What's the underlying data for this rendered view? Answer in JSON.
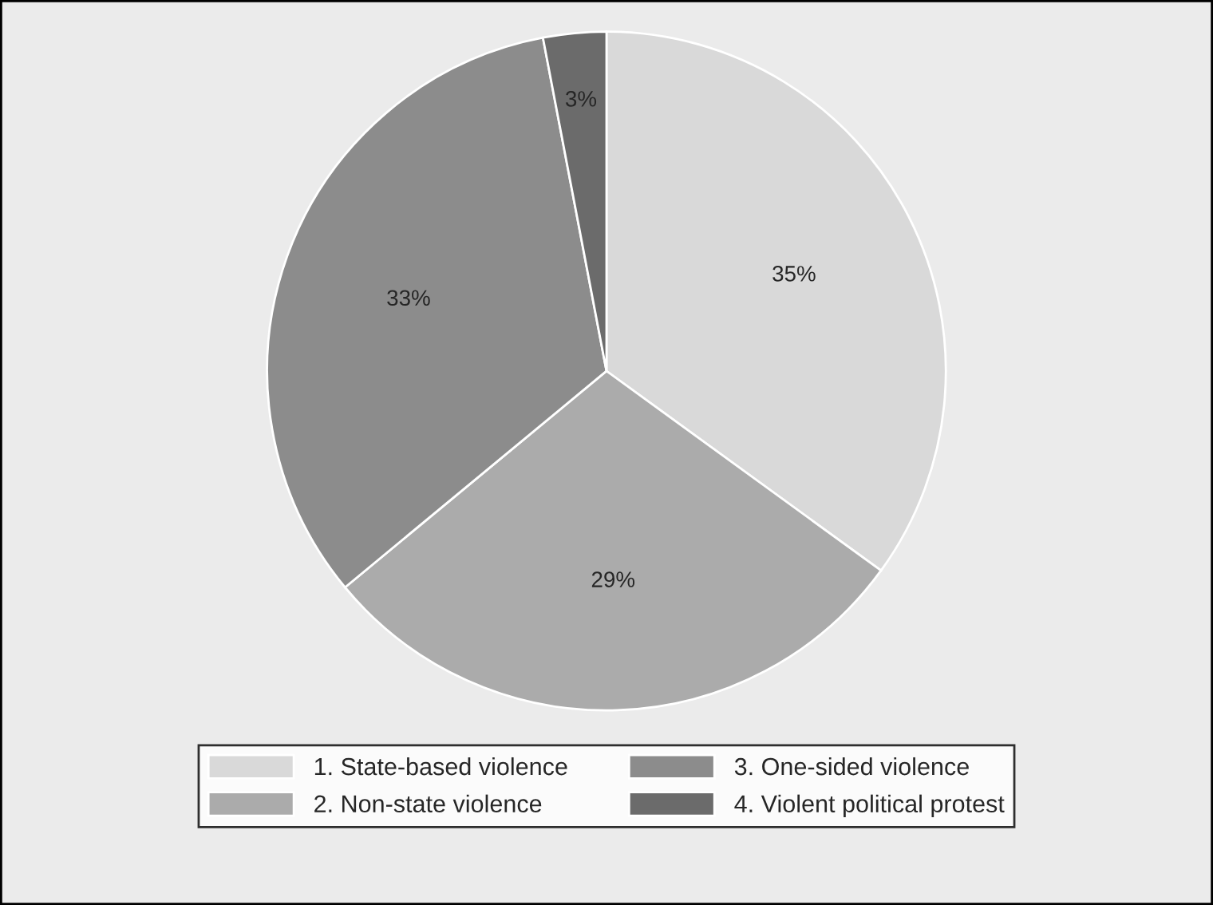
{
  "chart_data": {
    "type": "pie",
    "categories": [
      "1. State-based violence",
      "2. Non-state violence",
      "3. One-sided violence",
      "4. Violent political protest"
    ],
    "values": [
      35,
      29,
      33,
      3
    ],
    "value_labels": [
      "35%",
      "29%",
      "33%",
      "3%"
    ],
    "colors": [
      "#d9d9d9",
      "#ababab",
      "#8c8c8c",
      "#6b6b6b"
    ],
    "legend": "bottom"
  }
}
